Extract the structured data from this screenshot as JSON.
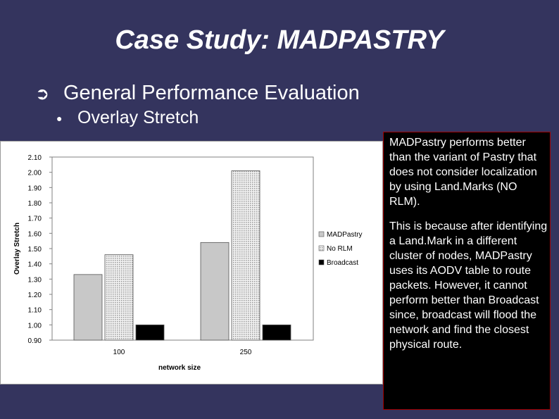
{
  "slide": {
    "title": "Case Study: MADPASTRY",
    "bullet1": "General Performance Evaluation",
    "bullet2": "Overlay Stretch",
    "note_p1": "MADPastry performs better than the variant of Pastry that does not consider localization by using Land.Marks (NO RLM).",
    "note_p2": "This is because after identifying a Land.Mark in a different cluster of nodes, MADPastry uses its AODV table to route packets. However, it cannot perform better than Broadcast since, broadcast will flood the network and find the closest physical route."
  },
  "icons": {
    "bullet1": "curved-arrow-icon",
    "bullet2": "dot-icon"
  },
  "colors": {
    "background": "#34345e",
    "madpastry": "#c8c8c8",
    "norlm": "#e0e0e0",
    "broadcast": "#000000"
  },
  "chart_data": {
    "type": "bar",
    "title": "",
    "xlabel": "network size",
    "ylabel": "Overlay Stretch",
    "categories": [
      "100",
      "250"
    ],
    "series": [
      {
        "name": "MADPastry",
        "values": [
          1.33,
          1.54
        ]
      },
      {
        "name": "No RLM",
        "values": [
          1.46,
          2.01
        ]
      },
      {
        "name": "Broadcast",
        "values": [
          1.0,
          1.0
        ]
      }
    ],
    "ylim": [
      0.9,
      2.1
    ],
    "yticks": [
      "2.10",
      "2.00",
      "1.90",
      "1.80",
      "1.70",
      "1.60",
      "1.50",
      "1.40",
      "1.30",
      "1.20",
      "1.10",
      "1.00",
      "0.90"
    ],
    "legend_position": "right",
    "grid": false
  }
}
